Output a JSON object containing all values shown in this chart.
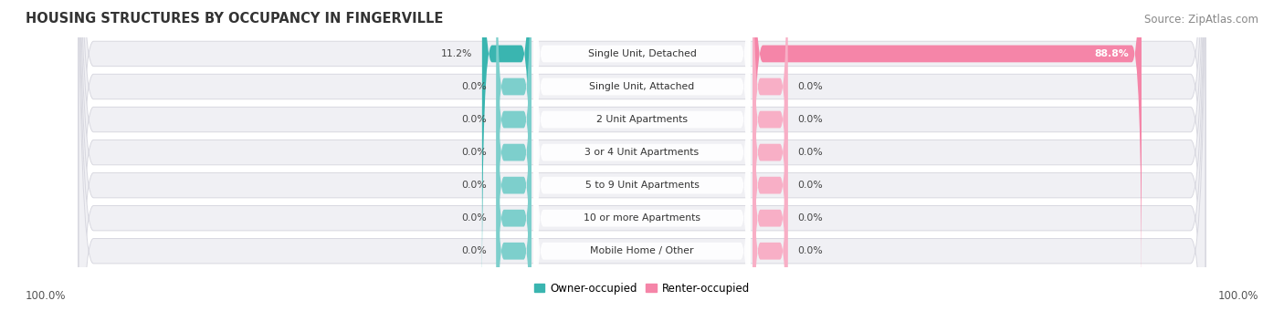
{
  "title": "HOUSING STRUCTURES BY OCCUPANCY IN FINGERVILLE",
  "source": "Source: ZipAtlas.com",
  "categories": [
    "Single Unit, Detached",
    "Single Unit, Attached",
    "2 Unit Apartments",
    "3 or 4 Unit Apartments",
    "5 to 9 Unit Apartments",
    "10 or more Apartments",
    "Mobile Home / Other"
  ],
  "owner_values": [
    11.2,
    0.0,
    0.0,
    0.0,
    0.0,
    0.0,
    0.0
  ],
  "renter_values": [
    88.8,
    0.0,
    0.0,
    0.0,
    0.0,
    0.0,
    0.0
  ],
  "owner_color": "#3ab5b0",
  "owner_stub_color": "#7dcfcc",
  "renter_color": "#f585a8",
  "renter_stub_color": "#f8afc6",
  "row_bg_color": "#f0f0f4",
  "row_border_color": "#d8d8e0",
  "label_bg_color": "#ffffff",
  "left_label_pct": "100.0%",
  "right_label_pct": "100.0%",
  "axis_label_fontsize": 8.5,
  "title_fontsize": 10.5,
  "source_fontsize": 8.5,
  "bar_label_fontsize": 7.8,
  "cat_label_fontsize": 7.8
}
